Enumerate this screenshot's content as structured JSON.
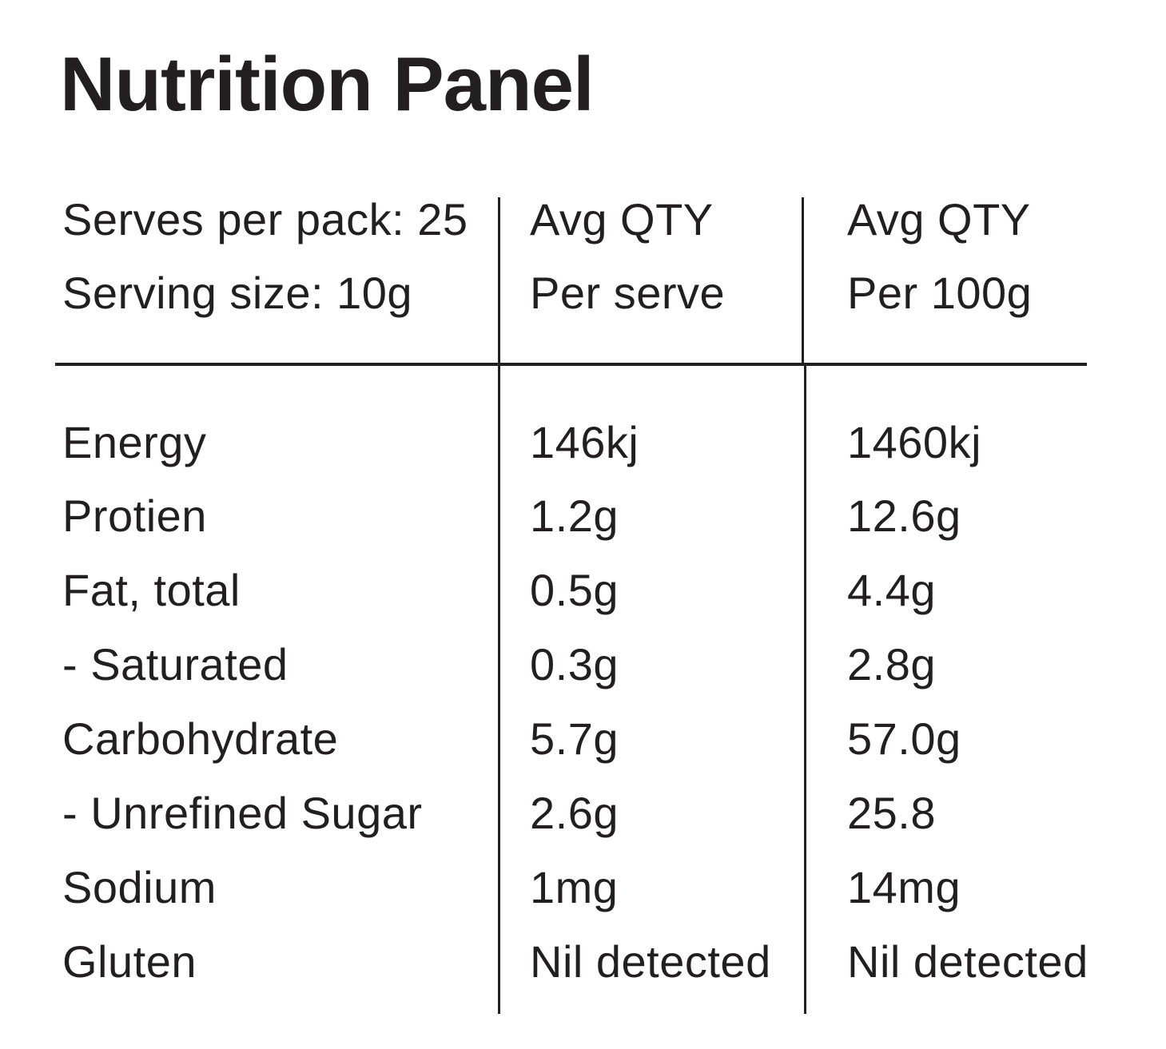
{
  "panel": {
    "title": "Nutrition Panel"
  },
  "header": {
    "col0": [
      "Serves per pack: 25",
      "Serving size: 10g"
    ],
    "col1": [
      "Avg QTY",
      "Per serve"
    ],
    "col2": [
      "Avg QTY",
      "Per 100g"
    ]
  },
  "rows": [
    {
      "name": "Energy",
      "per_serve": "146kj",
      "per_100g": "1460kj"
    },
    {
      "name": "Protien",
      "per_serve": "1.2g",
      "per_100g": "12.6g"
    },
    {
      "name": "Fat, total",
      "per_serve": "0.5g",
      "per_100g": "4.4g"
    },
    {
      "name": "- Saturated",
      "per_serve": "0.3g",
      "per_100g": "2.8g"
    },
    {
      "name": "Carbohydrate",
      "per_serve": "5.7g",
      "per_100g": "57.0g"
    },
    {
      "name": "- Unrefined Sugar",
      "per_serve": "2.6g",
      "per_100g": "25.8"
    },
    {
      "name": "Sodium",
      "per_serve": "1mg",
      "per_100g": "14mg"
    },
    {
      "name": "Gluten",
      "per_serve": "Nil detected",
      "per_100g": "Nil detected"
    }
  ]
}
